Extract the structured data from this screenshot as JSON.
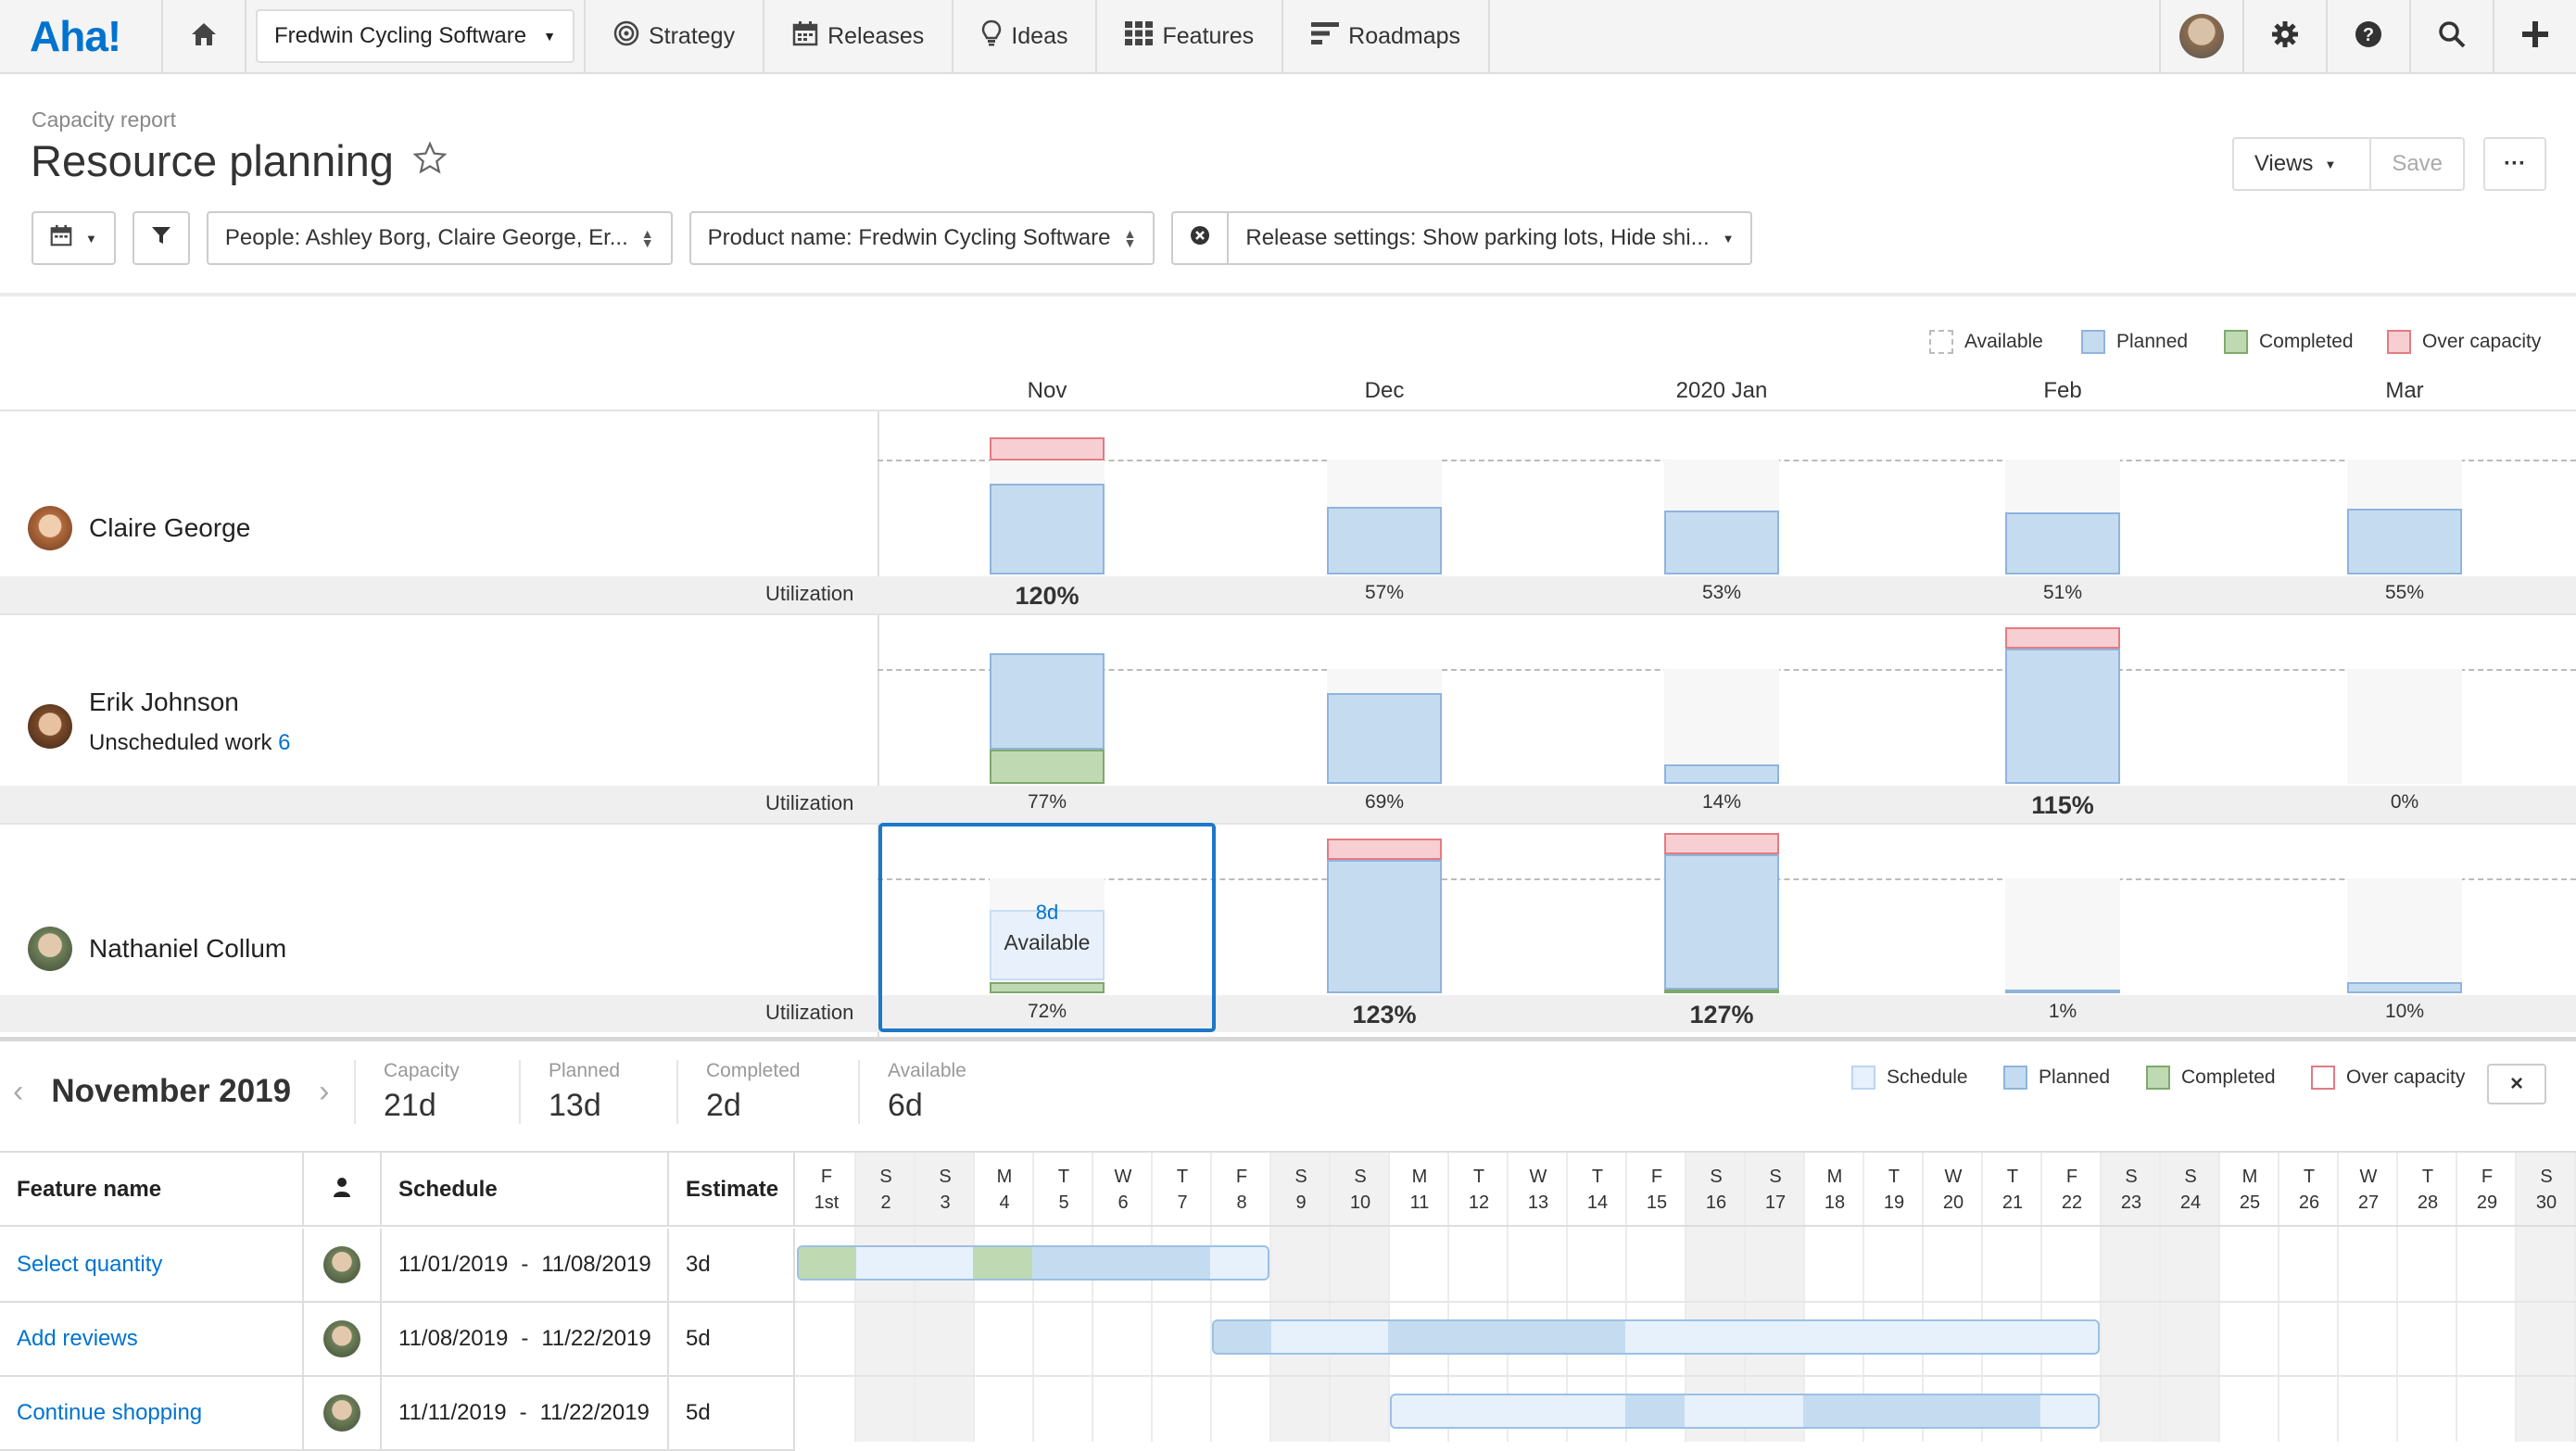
{
  "nav": {
    "logo": "Aha!",
    "product": "Fredwin Cycling Software",
    "items": [
      "Strategy",
      "Releases",
      "Ideas",
      "Features",
      "Roadmaps"
    ]
  },
  "header": {
    "breadcrumb": "Capacity report",
    "title": "Resource planning",
    "views_label": "Views",
    "save_label": "Save",
    "more_label": "···"
  },
  "filters": {
    "people": "People: Ashley Borg, Claire George, Er...",
    "product": "Product name: Fredwin Cycling Software",
    "release": "Release settings: Show parking lots, Hide shi..."
  },
  "legend_top": [
    "Available",
    "Planned",
    "Completed",
    "Over capacity"
  ],
  "months": [
    "Nov",
    "Dec",
    "2020 Jan",
    "Feb",
    "Mar"
  ],
  "utilization_label": "Utilization",
  "people": [
    {
      "name": "Claire George",
      "sub": "",
      "sub_count": "",
      "util": [
        "120%",
        "57%",
        "53%",
        "51%",
        "55%"
      ],
      "planned": [
        0.47,
        0.35,
        0.33,
        0.32,
        0.34
      ],
      "completed": [
        0,
        0,
        0,
        0,
        0
      ],
      "over": [
        0.12,
        0,
        0,
        0,
        0
      ]
    },
    {
      "name": "Erik Johnson",
      "sub": "Unscheduled work",
      "sub_count": "6",
      "util": [
        "77%",
        "69%",
        "14%",
        "115%",
        "0%"
      ],
      "planned": [
        0.5,
        0.47,
        0.1,
        0.7,
        0
      ],
      "completed": [
        0.18,
        0,
        0,
        0,
        0
      ],
      "over": [
        0,
        0,
        0,
        0.11,
        0
      ]
    },
    {
      "name": "Nathaniel Collum",
      "sub": "",
      "sub_count": "",
      "util": [
        "72%",
        "123%",
        "127%",
        "1%",
        "10%"
      ],
      "planned": [
        0,
        0.69,
        0.7,
        0.01,
        0.06
      ],
      "completed": [
        0.06,
        0,
        0.02,
        0,
        0
      ],
      "over": [
        0,
        0.11,
        0.11,
        0,
        0
      ]
    }
  ],
  "selected_cell": {
    "days": "8d",
    "label": "Available"
  },
  "summary": {
    "month": "November 2019",
    "stats": [
      {
        "label": "Capacity",
        "value": "21d"
      },
      {
        "label": "Planned",
        "value": "13d"
      },
      {
        "label": "Completed",
        "value": "2d"
      },
      {
        "label": "Available",
        "value": "6d"
      }
    ],
    "close": "×"
  },
  "legend_bottom": [
    "Schedule",
    "Planned",
    "Completed",
    "Over capacity"
  ],
  "table": {
    "headers": {
      "feature": "Feature name",
      "schedule": "Schedule",
      "estimate": "Estimate"
    },
    "days": [
      [
        "F",
        "1st"
      ],
      [
        "S",
        "2"
      ],
      [
        "S",
        "3"
      ],
      [
        "M",
        "4"
      ],
      [
        "T",
        "5"
      ],
      [
        "W",
        "6"
      ],
      [
        "T",
        "7"
      ],
      [
        "F",
        "8"
      ],
      [
        "S",
        "9"
      ],
      [
        "S",
        "10"
      ],
      [
        "M",
        "11"
      ],
      [
        "T",
        "12"
      ],
      [
        "W",
        "13"
      ],
      [
        "T",
        "14"
      ],
      [
        "F",
        "15"
      ],
      [
        "S",
        "16"
      ],
      [
        "S",
        "17"
      ],
      [
        "M",
        "18"
      ],
      [
        "T",
        "19"
      ],
      [
        "W",
        "20"
      ],
      [
        "T",
        "21"
      ],
      [
        "F",
        "22"
      ],
      [
        "S",
        "23"
      ],
      [
        "S",
        "24"
      ],
      [
        "M",
        "25"
      ],
      [
        "T",
        "26"
      ],
      [
        "W",
        "27"
      ],
      [
        "T",
        "28"
      ],
      [
        "F",
        "29"
      ],
      [
        "S",
        "30"
      ]
    ],
    "rows": [
      {
        "name": "Select quantity",
        "start": "11/01/2019",
        "dash": "-",
        "end": "11/08/2019",
        "estimate": "3d"
      },
      {
        "name": "Add reviews",
        "start": "11/08/2019",
        "dash": "-",
        "end": "11/22/2019",
        "estimate": "5d"
      },
      {
        "name": "Continue shopping",
        "start": "11/11/2019",
        "dash": "-",
        "end": "11/22/2019",
        "estimate": "5d"
      }
    ]
  },
  "colors": {
    "accent": "#0073cf",
    "planned": "#c5dcf0",
    "completed": "#bfdab3",
    "over": "#f7cfd2",
    "schedule": "#e6f1fc"
  }
}
